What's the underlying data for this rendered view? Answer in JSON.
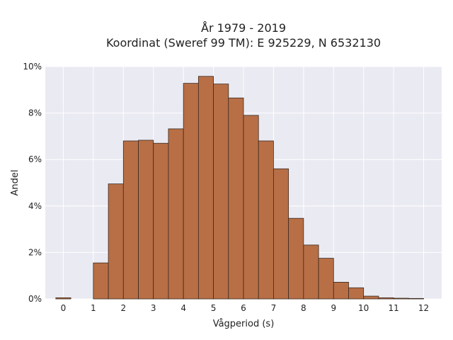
{
  "chart_data": {
    "type": "bar",
    "title": [
      "År 1979 - 2019",
      "Koordinat (Sweref 99 TM): E 925229, N 6532130"
    ],
    "xlabel": "Vågperiod (s)",
    "ylabel": "Andel",
    "xlim": [
      -0.6,
      12.6
    ],
    "ylim": [
      0,
      10
    ],
    "xticks": [
      0,
      1,
      2,
      3,
      4,
      5,
      6,
      7,
      8,
      9,
      10,
      11,
      12
    ],
    "yticks": [
      0,
      2,
      4,
      6,
      8,
      10
    ],
    "ytick_format": "{v}%",
    "grid": true,
    "bins": [
      {
        "x0": -0.25,
        "x1": 0.25,
        "value": 0.05
      },
      {
        "x0": 1.0,
        "x1": 1.5,
        "value": 1.55
      },
      {
        "x0": 1.5,
        "x1": 2.0,
        "value": 4.95
      },
      {
        "x0": 2.0,
        "x1": 2.5,
        "value": 6.8
      },
      {
        "x0": 2.5,
        "x1": 3.0,
        "value": 6.83
      },
      {
        "x0": 3.0,
        "x1": 3.5,
        "value": 6.7
      },
      {
        "x0": 3.5,
        "x1": 4.0,
        "value": 7.32
      },
      {
        "x0": 4.0,
        "x1": 4.5,
        "value": 9.28
      },
      {
        "x0": 4.5,
        "x1": 5.0,
        "value": 9.58
      },
      {
        "x0": 5.0,
        "x1": 5.5,
        "value": 9.25
      },
      {
        "x0": 5.5,
        "x1": 6.0,
        "value": 8.65
      },
      {
        "x0": 6.0,
        "x1": 6.5,
        "value": 7.9
      },
      {
        "x0": 6.5,
        "x1": 7.0,
        "value": 6.8
      },
      {
        "x0": 7.0,
        "x1": 7.5,
        "value": 5.6
      },
      {
        "x0": 7.5,
        "x1": 8.0,
        "value": 3.47
      },
      {
        "x0": 8.0,
        "x1": 8.5,
        "value": 2.32
      },
      {
        "x0": 8.5,
        "x1": 9.0,
        "value": 1.75
      },
      {
        "x0": 9.0,
        "x1": 9.5,
        "value": 0.72
      },
      {
        "x0": 9.5,
        "x1": 10.0,
        "value": 0.48
      },
      {
        "x0": 10.0,
        "x1": 10.5,
        "value": 0.12
      },
      {
        "x0": 10.5,
        "x1": 11.0,
        "value": 0.05
      },
      {
        "x0": 11.0,
        "x1": 11.5,
        "value": 0.03
      },
      {
        "x0": 11.5,
        "x1": 12.0,
        "value": 0.02
      }
    ],
    "bar_color": "#b86f46",
    "edge_color": "#3a2a20",
    "background_color": "#eaeaf2"
  }
}
